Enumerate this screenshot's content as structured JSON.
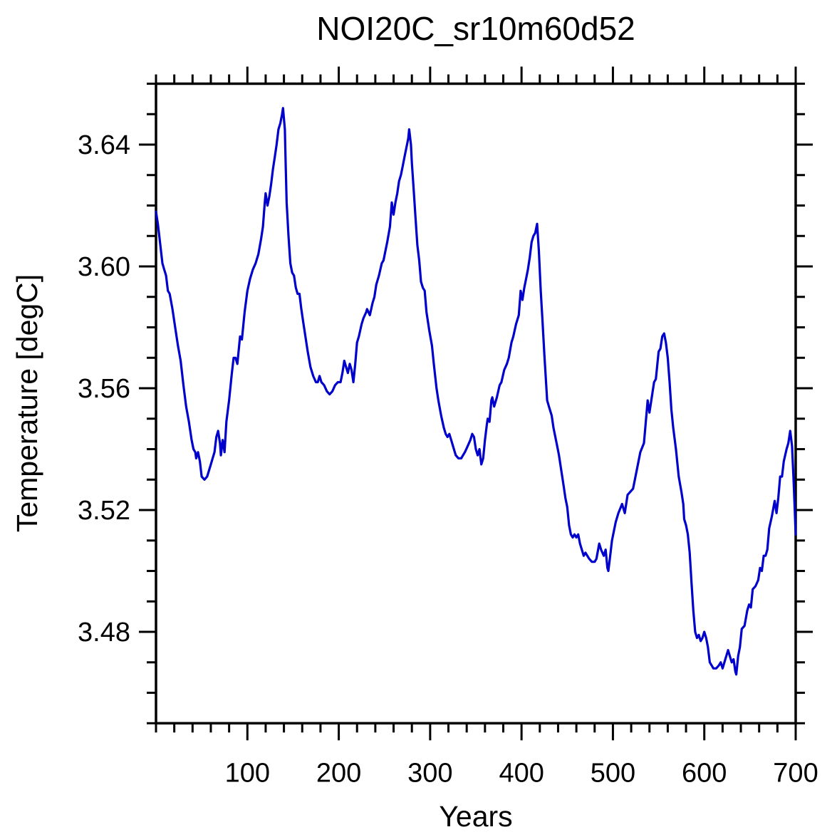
{
  "title": "NOI20C_sr10m60d52",
  "colors": {
    "line": "#0000cd",
    "axis": "#000000",
    "background": "#ffffff"
  },
  "chart_data": {
    "type": "line",
    "title": "NOI20C_sr10m60d52",
    "xlabel": "Years",
    "ylabel": "Temperature [degC]",
    "xlim": [
      0,
      700
    ],
    "ylim": [
      3.45,
      3.66
    ],
    "x_major_ticks": [
      100,
      200,
      300,
      400,
      500,
      600,
      700
    ],
    "x_minor_step": 20,
    "y_major_ticks": [
      3.48,
      3.52,
      3.56,
      3.6,
      3.64
    ],
    "y_minor_step": 0.01,
    "grid": false,
    "legend_position": "none",
    "line_color": "#0000cd",
    "series": [
      {
        "name": "temperature",
        "points": [
          [
            0,
            3.618
          ],
          [
            2,
            3.614
          ],
          [
            4,
            3.609
          ],
          [
            7,
            3.601
          ],
          [
            9,
            3.599
          ],
          [
            11,
            3.597
          ],
          [
            13,
            3.592
          ],
          [
            15,
            3.591
          ],
          [
            18,
            3.586
          ],
          [
            21,
            3.58
          ],
          [
            24,
            3.574
          ],
          [
            27,
            3.569
          ],
          [
            30,
            3.561
          ],
          [
            33,
            3.554
          ],
          [
            36,
            3.549
          ],
          [
            39,
            3.543
          ],
          [
            41,
            3.54
          ],
          [
            43,
            3.539
          ],
          [
            44,
            3.537
          ],
          [
            46,
            3.539
          ],
          [
            48,
            3.536
          ],
          [
            50,
            3.531
          ],
          [
            53,
            3.53
          ],
          [
            56,
            3.531
          ],
          [
            58,
            3.533
          ],
          [
            60,
            3.535
          ],
          [
            62,
            3.537
          ],
          [
            64,
            3.539
          ],
          [
            66,
            3.544
          ],
          [
            68,
            3.546
          ],
          [
            70,
            3.542
          ],
          [
            71,
            3.538
          ],
          [
            73,
            3.543
          ],
          [
            75,
            3.539
          ],
          [
            77,
            3.549
          ],
          [
            80,
            3.556
          ],
          [
            83,
            3.565
          ],
          [
            85,
            3.57
          ],
          [
            87,
            3.57
          ],
          [
            89,
            3.568
          ],
          [
            92,
            3.577
          ],
          [
            94,
            3.576
          ],
          [
            97,
            3.585
          ],
          [
            100,
            3.592
          ],
          [
            103,
            3.596
          ],
          [
            106,
            3.599
          ],
          [
            109,
            3.601
          ],
          [
            112,
            3.604
          ],
          [
            115,
            3.609
          ],
          [
            117,
            3.613
          ],
          [
            119,
            3.621
          ],
          [
            120,
            3.624
          ],
          [
            122,
            3.62
          ],
          [
            124,
            3.623
          ],
          [
            126,
            3.627
          ],
          [
            128,
            3.632
          ],
          [
            130,
            3.636
          ],
          [
            132,
            3.64
          ],
          [
            134,
            3.645
          ],
          [
            136,
            3.647
          ],
          [
            138,
            3.65
          ],
          [
            139,
            3.652
          ],
          [
            141,
            3.645
          ],
          [
            142,
            3.632
          ],
          [
            143,
            3.621
          ],
          [
            145,
            3.61
          ],
          [
            147,
            3.601
          ],
          [
            149,
            3.598
          ],
          [
            151,
            3.597
          ],
          [
            153,
            3.593
          ],
          [
            155,
            3.591
          ],
          [
            157,
            3.591
          ],
          [
            159,
            3.586
          ],
          [
            161,
            3.582
          ],
          [
            163,
            3.578
          ],
          [
            166,
            3.572
          ],
          [
            169,
            3.567
          ],
          [
            172,
            3.564
          ],
          [
            175,
            3.562
          ],
          [
            177,
            3.562
          ],
          [
            179,
            3.564
          ],
          [
            181,
            3.562
          ],
          [
            184,
            3.561
          ],
          [
            187,
            3.559
          ],
          [
            190,
            3.558
          ],
          [
            193,
            3.559
          ],
          [
            196,
            3.561
          ],
          [
            199,
            3.562
          ],
          [
            202,
            3.562
          ],
          [
            204,
            3.565
          ],
          [
            206,
            3.569
          ],
          [
            208,
            3.567
          ],
          [
            210,
            3.565
          ],
          [
            212,
            3.568
          ],
          [
            214,
            3.566
          ],
          [
            216,
            3.562
          ],
          [
            218,
            3.568
          ],
          [
            220,
            3.575
          ],
          [
            222,
            3.577
          ],
          [
            225,
            3.581
          ],
          [
            227,
            3.583
          ],
          [
            230,
            3.585
          ],
          [
            231,
            3.586
          ],
          [
            234,
            3.584
          ],
          [
            237,
            3.588
          ],
          [
            239,
            3.59
          ],
          [
            241,
            3.594
          ],
          [
            244,
            3.597
          ],
          [
            247,
            3.601
          ],
          [
            249,
            3.602
          ],
          [
            251,
            3.605
          ],
          [
            253,
            3.608
          ],
          [
            256,
            3.613
          ],
          [
            258,
            3.621
          ],
          [
            260,
            3.617
          ],
          [
            262,
            3.621
          ],
          [
            264,
            3.624
          ],
          [
            266,
            3.628
          ],
          [
            268,
            3.63
          ],
          [
            270,
            3.633
          ],
          [
            272,
            3.636
          ],
          [
            274,
            3.639
          ],
          [
            276,
            3.642
          ],
          [
            277,
            3.645
          ],
          [
            279,
            3.64
          ],
          [
            280,
            3.634
          ],
          [
            282,
            3.625
          ],
          [
            284,
            3.616
          ],
          [
            286,
            3.607
          ],
          [
            288,
            3.602
          ],
          [
            290,
            3.595
          ],
          [
            292,
            3.593
          ],
          [
            294,
            3.592
          ],
          [
            296,
            3.585
          ],
          [
            299,
            3.579
          ],
          [
            302,
            3.574
          ],
          [
            304,
            3.568
          ],
          [
            307,
            3.56
          ],
          [
            309,
            3.556
          ],
          [
            312,
            3.551
          ],
          [
            315,
            3.547
          ],
          [
            317,
            3.545
          ],
          [
            319,
            3.544
          ],
          [
            321,
            3.545
          ],
          [
            323,
            3.543
          ],
          [
            326,
            3.54
          ],
          [
            328,
            3.538
          ],
          [
            331,
            3.537
          ],
          [
            334,
            3.537
          ],
          [
            336,
            3.538
          ],
          [
            338,
            3.539
          ],
          [
            341,
            3.541
          ],
          [
            344,
            3.543
          ],
          [
            346,
            3.545
          ],
          [
            348,
            3.544
          ],
          [
            350,
            3.54
          ],
          [
            352,
            3.538
          ],
          [
            354,
            3.54
          ],
          [
            356,
            3.535
          ],
          [
            358,
            3.537
          ],
          [
            360,
            3.543
          ],
          [
            362,
            3.548
          ],
          [
            363,
            3.55
          ],
          [
            365,
            3.549
          ],
          [
            367,
            3.556
          ],
          [
            368,
            3.557
          ],
          [
            370,
            3.554
          ],
          [
            373,
            3.557
          ],
          [
            376,
            3.561
          ],
          [
            378,
            3.562
          ],
          [
            381,
            3.566
          ],
          [
            384,
            3.568
          ],
          [
            386,
            3.57
          ],
          [
            389,
            3.575
          ],
          [
            391,
            3.577
          ],
          [
            394,
            3.581
          ],
          [
            397,
            3.584
          ],
          [
            399,
            3.592
          ],
          [
            401,
            3.589
          ],
          [
            403,
            3.593
          ],
          [
            405,
            3.596
          ],
          [
            407,
            3.599
          ],
          [
            409,
            3.603
          ],
          [
            411,
            3.608
          ],
          [
            413,
            3.61
          ],
          [
            415,
            3.611
          ],
          [
            417,
            3.614
          ],
          [
            419,
            3.605
          ],
          [
            421,
            3.592
          ],
          [
            423,
            3.582
          ],
          [
            425,
            3.571
          ],
          [
            427,
            3.561
          ],
          [
            428,
            3.556
          ],
          [
            430,
            3.554
          ],
          [
            433,
            3.551
          ],
          [
            435,
            3.547
          ],
          [
            437,
            3.544
          ],
          [
            439,
            3.541
          ],
          [
            441,
            3.538
          ],
          [
            443,
            3.534
          ],
          [
            446,
            3.528
          ],
          [
            448,
            3.524
          ],
          [
            450,
            3.521
          ],
          [
            452,
            3.515
          ],
          [
            454,
            3.512
          ],
          [
            456,
            3.511
          ],
          [
            458,
            3.512
          ],
          [
            460,
            3.511
          ],
          [
            462,
            3.512
          ],
          [
            464,
            3.509
          ],
          [
            466,
            3.507
          ],
          [
            468,
            3.505
          ],
          [
            470,
            3.506
          ],
          [
            472,
            3.505
          ],
          [
            474,
            3.504
          ],
          [
            477,
            3.503
          ],
          [
            480,
            3.503
          ],
          [
            482,
            3.504
          ],
          [
            485,
            3.509
          ],
          [
            487,
            3.507
          ],
          [
            490,
            3.505
          ],
          [
            492,
            3.507
          ],
          [
            494,
            3.501
          ],
          [
            495,
            3.5
          ],
          [
            497,
            3.505
          ],
          [
            499,
            3.51
          ],
          [
            503,
            3.516
          ],
          [
            506,
            3.519
          ],
          [
            510,
            3.522
          ],
          [
            513,
            3.519
          ],
          [
            516,
            3.525
          ],
          [
            519,
            3.526
          ],
          [
            522,
            3.527
          ],
          [
            526,
            3.533
          ],
          [
            530,
            3.539
          ],
          [
            534,
            3.542
          ],
          [
            536,
            3.549
          ],
          [
            538,
            3.556
          ],
          [
            540,
            3.552
          ],
          [
            543,
            3.558
          ],
          [
            545,
            3.562
          ],
          [
            547,
            3.563
          ],
          [
            550,
            3.572
          ],
          [
            552,
            3.573
          ],
          [
            554,
            3.577
          ],
          [
            556,
            3.578
          ],
          [
            558,
            3.575
          ],
          [
            560,
            3.57
          ],
          [
            562,
            3.562
          ],
          [
            564,
            3.553
          ],
          [
            566,
            3.547
          ],
          [
            569,
            3.54
          ],
          [
            572,
            3.531
          ],
          [
            575,
            3.526
          ],
          [
            577,
            3.522
          ],
          [
            578,
            3.517
          ],
          [
            580,
            3.515
          ],
          [
            582,
            3.512
          ],
          [
            584,
            3.506
          ],
          [
            586,
            3.496
          ],
          [
            588,
            3.487
          ],
          [
            590,
            3.48
          ],
          [
            592,
            3.478
          ],
          [
            594,
            3.479
          ],
          [
            596,
            3.477
          ],
          [
            598,
            3.478
          ],
          [
            600,
            3.48
          ],
          [
            602,
            3.478
          ],
          [
            604,
            3.475
          ],
          [
            606,
            3.47
          ],
          [
            608,
            3.469
          ],
          [
            610,
            3.468
          ],
          [
            613,
            3.468
          ],
          [
            616,
            3.469
          ],
          [
            618,
            3.47
          ],
          [
            620,
            3.468
          ],
          [
            623,
            3.471
          ],
          [
            626,
            3.474
          ],
          [
            628,
            3.472
          ],
          [
            630,
            3.47
          ],
          [
            632,
            3.471
          ],
          [
            634,
            3.467
          ],
          [
            635,
            3.466
          ],
          [
            637,
            3.472
          ],
          [
            639,
            3.475
          ],
          [
            641,
            3.481
          ],
          [
            644,
            3.482
          ],
          [
            647,
            3.487
          ],
          [
            649,
            3.489
          ],
          [
            651,
            3.488
          ],
          [
            653,
            3.494
          ],
          [
            656,
            3.495
          ],
          [
            659,
            3.497
          ],
          [
            661,
            3.501
          ],
          [
            663,
            3.5
          ],
          [
            665,
            3.505
          ],
          [
            667,
            3.505
          ],
          [
            669,
            3.507
          ],
          [
            671,
            3.514
          ],
          [
            674,
            3.518
          ],
          [
            677,
            3.523
          ],
          [
            679,
            3.519
          ],
          [
            681,
            3.524
          ],
          [
            683,
            3.531
          ],
          [
            685,
            3.531
          ],
          [
            687,
            3.536
          ],
          [
            690,
            3.54
          ],
          [
            692,
            3.542
          ],
          [
            694,
            3.546
          ],
          [
            696,
            3.541
          ],
          [
            698,
            3.528
          ],
          [
            700,
            3.512
          ]
        ]
      }
    ]
  }
}
